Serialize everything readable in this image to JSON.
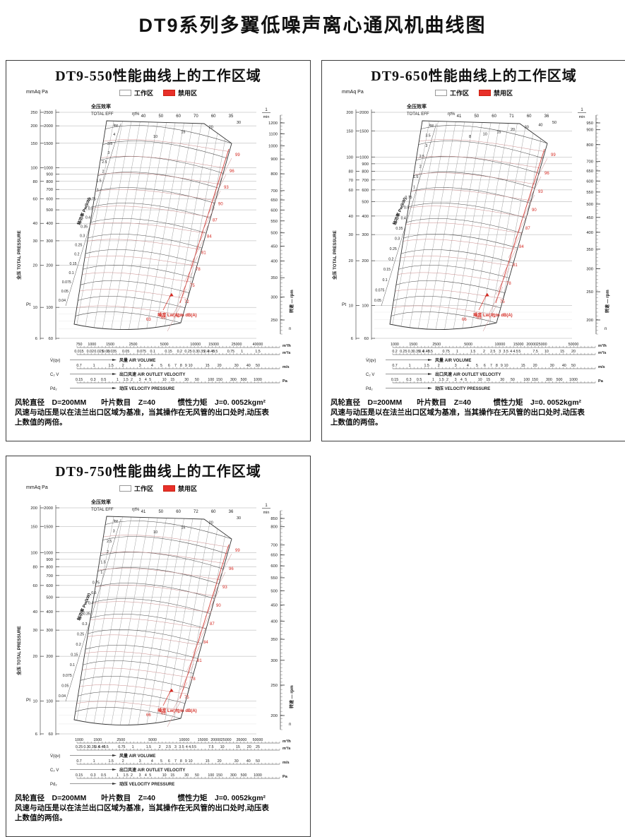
{
  "page_title": "DT9系列多翼低噪声离心通风机曲线图",
  "legend": {
    "work": "工作区",
    "forbidden": "禁用区"
  },
  "colors": {
    "forbidden_zone": "#e8302a",
    "curve_red": "#c98a8a",
    "label_red": "#d42a22",
    "ink": "#1a1a1a",
    "grid": "#adadad"
  },
  "footer": {
    "line1": "风轮直径　D=200MM　　叶片数目　Z=40　　　惯性力矩　J=0. 0052kgm²",
    "line2": "风速与动压是以在法兰出口区域为基准，当其操作在无风管的出口处时,动压表",
    "line3": "上数值的两倍。"
  },
  "shared_labels": {
    "unit_corner": "mmAq Pa",
    "eff_cn": "全压效率",
    "eff_en": "TOTAL   EFF",
    "eff_sym": "ηt%",
    "pressure_axis": "全压  TOTAL  PRESSURE",
    "pressure_sym": "Pt",
    "power_label": "轴功率 Pw(kW)",
    "rpm_unit_num": "1",
    "rpm_unit_den": "min",
    "rpm_axis": "转速 ― rpm",
    "rpm_sym": "n",
    "noise_label": "噪音 Lw(A) in  dB(A)",
    "units": {
      "m3h": "m³/h",
      "m3s": "m³/s",
      "ms": "m/s",
      "pa": "Pa"
    },
    "rows": [
      {
        "sym": "V̇(qv)",
        "cn": "风量",
        "en": "AIR  VOLUME"
      },
      {
        "sym": "C₂ V",
        "cn": "出口风速",
        "en": "AIR  OUTLET   VELOCITY"
      },
      {
        "sym": "Pd₂",
        "cn": "动压",
        "en": "VELOCITY  PRESSURE"
      }
    ]
  },
  "chart_data": [
    {
      "type": "line",
      "variant": "fan-performance-nomogram",
      "model": "DT9-550",
      "title": "DT9-550性能曲线上的工作区域",
      "xlabel": "风量 AIR VOLUME",
      "ylabel": "全压 TOTAL PRESSURE",
      "efficiency_ticks": [
        "40",
        "50",
        "60",
        "70",
        "60",
        "35"
      ],
      "rpm_ticks": [
        "1200",
        "1100",
        "1000",
        "900",
        "800",
        "700",
        "650",
        "600",
        "550",
        "500",
        "450",
        "400",
        "350",
        "300",
        "250"
      ],
      "pressure_mmaq_ticks": [
        "250",
        "200",
        "150",
        "100",
        "80",
        "60",
        "40",
        "30",
        "20",
        "10",
        "6"
      ],
      "pressure_pa_ticks": [
        "2500",
        "2000",
        "1500",
        "1000",
        "900",
        "800",
        "700",
        "600",
        "500",
        "400",
        "300",
        "200",
        "100",
        "60"
      ],
      "power_kw_labels": [
        "kw",
        "4",
        "3.5",
        "3",
        "2.5",
        "2",
        "1.5",
        "1",
        "0.75",
        "0.5",
        "0.4",
        "0.35",
        "0.3",
        "0.25",
        "0.2",
        "0.15",
        "0.1",
        "0.075",
        "0.05",
        "0.04"
      ],
      "outlet_velocity_curve_labels": [
        "10",
        "15",
        "20",
        "30"
      ],
      "noise_db_labels": [
        "99",
        "96",
        "93",
        "90",
        "87",
        "84",
        "81",
        "78",
        "75",
        "72",
        "69",
        "66",
        "63"
      ],
      "volume_m3h_ticks": [
        "750",
        "1000",
        "1500",
        "2500",
        "5000",
        "10000",
        "15000",
        "25000",
        "40000"
      ],
      "volume_m3s_ticks": [
        "0.015",
        "0.02",
        "0.025",
        "0.03",
        "0.035",
        "0.05",
        "0.075",
        "0.1",
        "0.15",
        "0.2",
        "0.25",
        "0.3",
        "0.35",
        "0.4",
        "0.45",
        "0.5",
        "0.75",
        "1",
        "1.5"
      ],
      "outlet_velocity_ms_ticks": [
        "0.7",
        "1",
        "1.5",
        "2",
        "3",
        "4",
        "5",
        "6",
        "7",
        "8",
        "9",
        "10",
        "15",
        "20",
        "30",
        "40",
        "50"
      ],
      "velocity_pressure_pa_ticks": [
        "0.15",
        "0.3",
        "0.5",
        "1",
        "1.5",
        "2",
        "3",
        "4",
        "5",
        "10",
        "15",
        "30",
        "50",
        "100",
        "150",
        "300",
        "500",
        "1000"
      ]
    },
    {
      "type": "line",
      "variant": "fan-performance-nomogram",
      "model": "DT9-650",
      "title": "DT9-650性能曲线上的工作区域",
      "xlabel": "风量 AIR VOLUME",
      "ylabel": "全压 TOTAL PRESSURE",
      "efficiency_ticks": [
        "41",
        "50",
        "60",
        "71",
        "60",
        "36"
      ],
      "rpm_ticks": [
        "950",
        "900",
        "800",
        "700",
        "650",
        "600",
        "550",
        "500",
        "450",
        "400",
        "350",
        "300",
        "250",
        "200"
      ],
      "pressure_mmaq_ticks": [
        "200",
        "150",
        "100",
        "80",
        "70",
        "60",
        "40",
        "30",
        "20",
        "10",
        "6"
      ],
      "pressure_pa_ticks": [
        "2000",
        "1500",
        "1000",
        "900",
        "800",
        "700",
        "600",
        "500",
        "400",
        "300",
        "200",
        "100",
        "60"
      ],
      "power_kw_labels": [
        "kw",
        "3.5",
        "3",
        "2.5",
        "2",
        "1.5",
        "1",
        "0.75",
        "0.5",
        "0.4",
        "0.35",
        "0.3",
        "0.25",
        "0.2",
        "0.15",
        "0.1",
        "0.075",
        "0.05"
      ],
      "outlet_velocity_curve_labels": [
        "8",
        "10",
        "15",
        "20",
        "30",
        "40",
        "50"
      ],
      "noise_db_labels": [
        "99",
        "96",
        "93",
        "90",
        "87",
        "84",
        "81",
        "78",
        "75",
        "72",
        "69",
        "66"
      ],
      "volume_m3h_ticks": [
        "1000",
        "1500",
        "2500",
        "5000",
        "10000",
        "15000",
        "20000",
        "25000",
        "50000"
      ],
      "volume_m3s_ticks": [
        "0.2",
        "0.25",
        "0.3",
        "0.35",
        "0.4",
        "0.45",
        "0.5",
        "0.75",
        "1",
        "1.5",
        "2",
        "2.5",
        "3",
        "3.5",
        "4",
        "4.5",
        "5",
        "7.5",
        "10",
        "15",
        "20"
      ],
      "outlet_velocity_ms_ticks": [
        "0.7",
        "1",
        "1.5",
        "2",
        "3",
        "4",
        "5",
        "6",
        "7",
        "8",
        "9",
        "10",
        "15",
        "20",
        "30",
        "40",
        "50"
      ],
      "velocity_pressure_pa_ticks": [
        "0.15",
        "0.3",
        "0.5",
        "1",
        "1.5",
        "2",
        "3",
        "4",
        "5",
        "10",
        "15",
        "30",
        "50",
        "100",
        "150",
        "300",
        "500",
        "1000"
      ]
    },
    {
      "type": "line",
      "variant": "fan-performance-nomogram",
      "model": "DT9-750",
      "title": "DT9-750性能曲线上的工作区域",
      "xlabel": "风量 AIR VOLUME",
      "ylabel": "全压 TOTAL PRESSURE",
      "efficiency_ticks": [
        "41",
        "50",
        "60",
        "72",
        "60",
        "36"
      ],
      "rpm_ticks": [
        "850",
        "800",
        "700",
        "650",
        "600",
        "550",
        "500",
        "450",
        "400",
        "350",
        "300",
        "250",
        "200"
      ],
      "pressure_mmaq_ticks": [
        "200",
        "150",
        "100",
        "80",
        "60",
        "40",
        "30",
        "20",
        "10",
        "6"
      ],
      "pressure_pa_ticks": [
        "2000",
        "1500",
        "1000",
        "900",
        "800",
        "700",
        "600",
        "500",
        "400",
        "300",
        "200",
        "100",
        "60"
      ],
      "power_kw_labels": [
        "kw",
        "3",
        "2.5",
        "2",
        "1.5",
        "1",
        "0.75",
        "0.5",
        "0.4",
        "0.35",
        "0.3",
        "0.25",
        "0.2",
        "0.15",
        "0.1",
        "0.075",
        "0.05",
        "0.04"
      ],
      "outlet_velocity_curve_labels": [
        "10",
        "15",
        "20",
        "30"
      ],
      "noise_db_labels": [
        "99",
        "96",
        "93",
        "90",
        "87",
        "84",
        "81",
        "78",
        "75",
        "72",
        "69",
        "66"
      ],
      "volume_m3h_ticks": [
        "1000",
        "1500",
        "2500",
        "5000",
        "10000",
        "15000",
        "20000",
        "25000",
        "35000",
        "50000"
      ],
      "volume_m3s_ticks": [
        "0.25",
        "0.3",
        "0.35",
        "0.4",
        "0.45",
        "0.5",
        "0.75",
        "1",
        "1.5",
        "2",
        "2.5",
        "3",
        "3.5",
        "4",
        "4.5",
        "5",
        "7.5",
        "10",
        "15",
        "20",
        "25"
      ],
      "outlet_velocity_ms_ticks": [
        "0.7",
        "1",
        "1.5",
        "2",
        "3",
        "4",
        "5",
        "6",
        "7",
        "8",
        "9",
        "10",
        "15",
        "20",
        "30",
        "40",
        "50"
      ],
      "velocity_pressure_pa_ticks": [
        "0.15",
        "0.3",
        "0.5",
        "1",
        "1.5",
        "2",
        "3",
        "4",
        "5",
        "10",
        "15",
        "30",
        "50",
        "100",
        "150",
        "300",
        "500",
        "1000"
      ]
    }
  ]
}
